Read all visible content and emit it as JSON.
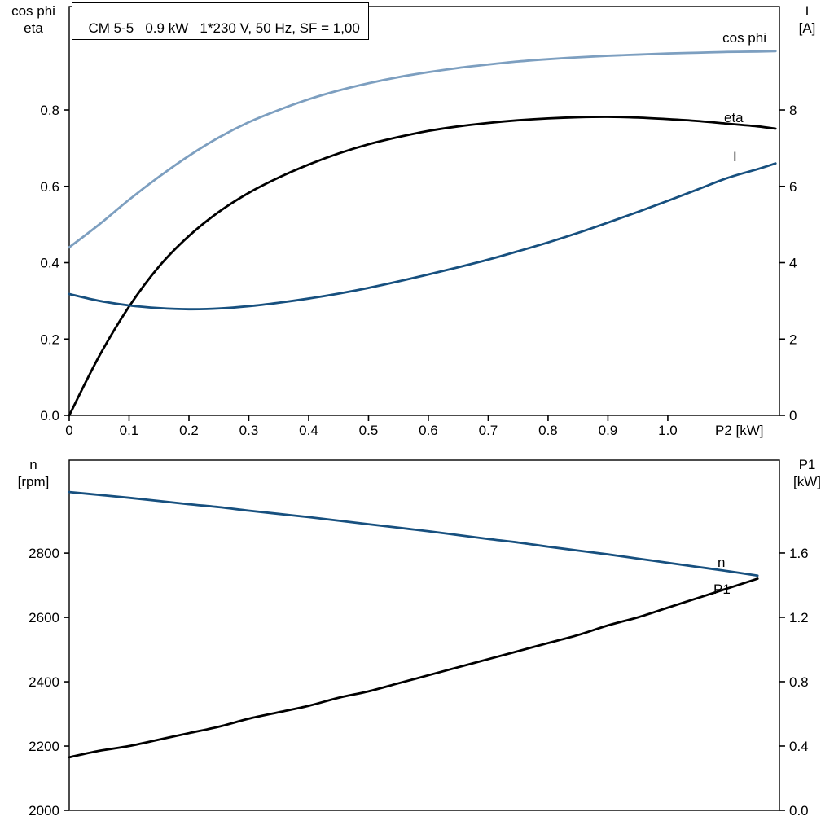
{
  "title_box": {
    "text": "CM 5-5   0.9 kW   1*230 V, 50 Hz, SF = 1,00"
  },
  "colors": {
    "light_blue": "#7d9fc0",
    "dark_blue": "#17507f",
    "black": "#000000",
    "frame": "#000000",
    "background": "#ffffff"
  },
  "chart_data": [
    {
      "type": "line",
      "xlabel": "P2 [kW]",
      "xlim": [
        0,
        1.1865
      ],
      "x_ticks": [
        0,
        0.1,
        0.2,
        0.3,
        0.4,
        0.5,
        0.6,
        0.7,
        0.8,
        0.9,
        1.0
      ],
      "x_tick_labels": [
        "0",
        "0.1",
        "0.2",
        "0.3",
        "0.4",
        "0.5",
        "0.6",
        "0.7",
        "0.8",
        "0.9",
        "1.0"
      ],
      "left_axis": {
        "label_lines": [
          "cos phi",
          "eta"
        ],
        "lim": [
          0,
          1.071
        ],
        "ticks": [
          0,
          0.2,
          0.4,
          0.6,
          0.8
        ],
        "tick_labels": [
          "0.0",
          "0.2",
          "0.4",
          "0.6",
          "0.8"
        ]
      },
      "right_axis": {
        "label_lines": [
          "I",
          "[A]"
        ],
        "lim": [
          0,
          10.71
        ],
        "ticks": [
          0,
          2,
          4,
          6,
          8
        ],
        "tick_labels": [
          "0",
          "2",
          "4",
          "6",
          "8"
        ]
      },
      "series": [
        {
          "name": "cos phi",
          "axis": "left",
          "color_key": "light_blue",
          "x": [
            0,
            0.05,
            0.1,
            0.15,
            0.2,
            0.25,
            0.3,
            0.35,
            0.4,
            0.45,
            0.5,
            0.55,
            0.6,
            0.65,
            0.7,
            0.75,
            0.8,
            0.85,
            0.9,
            0.95,
            1.0,
            1.05,
            1.1,
            1.15,
            1.18
          ],
          "values": [
            0.44,
            0.5,
            0.565,
            0.625,
            0.68,
            0.728,
            0.768,
            0.8,
            0.828,
            0.851,
            0.87,
            0.886,
            0.899,
            0.91,
            0.919,
            0.927,
            0.933,
            0.938,
            0.942,
            0.945,
            0.948,
            0.95,
            0.952,
            0.953,
            0.954
          ]
        },
        {
          "name": "eta",
          "axis": "left",
          "color_key": "black",
          "x": [
            0,
            0.05,
            0.1,
            0.15,
            0.2,
            0.25,
            0.3,
            0.35,
            0.4,
            0.45,
            0.5,
            0.55,
            0.6,
            0.65,
            0.7,
            0.75,
            0.8,
            0.85,
            0.9,
            0.95,
            1.0,
            1.05,
            1.1,
            1.15,
            1.18
          ],
          "values": [
            0,
            0.155,
            0.285,
            0.39,
            0.47,
            0.533,
            0.583,
            0.623,
            0.657,
            0.686,
            0.71,
            0.729,
            0.745,
            0.757,
            0.766,
            0.773,
            0.778,
            0.781,
            0.782,
            0.78,
            0.776,
            0.771,
            0.764,
            0.757,
            0.751
          ]
        },
        {
          "name": "I",
          "axis": "right",
          "color_key": "dark_blue",
          "x": [
            0,
            0.05,
            0.1,
            0.15,
            0.2,
            0.25,
            0.3,
            0.35,
            0.4,
            0.45,
            0.5,
            0.55,
            0.6,
            0.65,
            0.7,
            0.75,
            0.8,
            0.85,
            0.9,
            0.95,
            1.0,
            1.05,
            1.1,
            1.15,
            1.18
          ],
          "values": [
            3.18,
            3.0,
            2.88,
            2.81,
            2.78,
            2.8,
            2.86,
            2.95,
            3.06,
            3.19,
            3.34,
            3.51,
            3.69,
            3.88,
            4.08,
            4.3,
            4.53,
            4.78,
            5.05,
            5.33,
            5.62,
            5.92,
            6.22,
            6.45,
            6.6
          ]
        }
      ]
    },
    {
      "type": "line",
      "xlabel": "",
      "xlim": [
        0,
        1.1865
      ],
      "x_ticks": [],
      "x_tick_labels": [],
      "left_axis": {
        "label_lines": [
          "n",
          "[rpm]"
        ],
        "lim": [
          2000,
          3089
        ],
        "ticks": [
          2000,
          2200,
          2400,
          2600,
          2800
        ],
        "tick_labels": [
          "2000",
          "2200",
          "2400",
          "2600",
          "2800"
        ]
      },
      "right_axis": {
        "label_lines": [
          "P1",
          "[kW]"
        ],
        "lim": [
          0,
          2.177
        ],
        "ticks": [
          0,
          0.4,
          0.8,
          1.2,
          1.6
        ],
        "tick_labels": [
          "0.0",
          "0.4",
          "0.8",
          "1.2",
          "1.6"
        ]
      },
      "series": [
        {
          "name": "n",
          "axis": "left",
          "color_key": "dark_blue",
          "x": [
            0,
            0.05,
            0.1,
            0.15,
            0.2,
            0.25,
            0.3,
            0.35,
            0.4,
            0.45,
            0.5,
            0.55,
            0.6,
            0.65,
            0.7,
            0.75,
            0.8,
            0.85,
            0.9,
            0.95,
            1.0,
            1.05,
            1.1,
            1.15
          ],
          "values": [
            2990,
            2981,
            2972,
            2962,
            2952,
            2943,
            2932,
            2922,
            2912,
            2901,
            2890,
            2879,
            2868,
            2856,
            2844,
            2833,
            2820,
            2808,
            2796,
            2783,
            2770,
            2757,
            2744,
            2730
          ]
        },
        {
          "name": "P1",
          "axis": "right",
          "color_key": "black",
          "x": [
            0,
            0.05,
            0.1,
            0.15,
            0.2,
            0.25,
            0.3,
            0.35,
            0.4,
            0.45,
            0.5,
            0.55,
            0.6,
            0.65,
            0.7,
            0.75,
            0.8,
            0.85,
            0.9,
            0.95,
            1.0,
            1.05,
            1.1,
            1.15
          ],
          "values": [
            0.33,
            0.37,
            0.4,
            0.44,
            0.48,
            0.52,
            0.57,
            0.61,
            0.65,
            0.7,
            0.74,
            0.79,
            0.84,
            0.89,
            0.94,
            0.99,
            1.04,
            1.09,
            1.15,
            1.2,
            1.26,
            1.32,
            1.38,
            1.44
          ]
        }
      ]
    }
  ]
}
